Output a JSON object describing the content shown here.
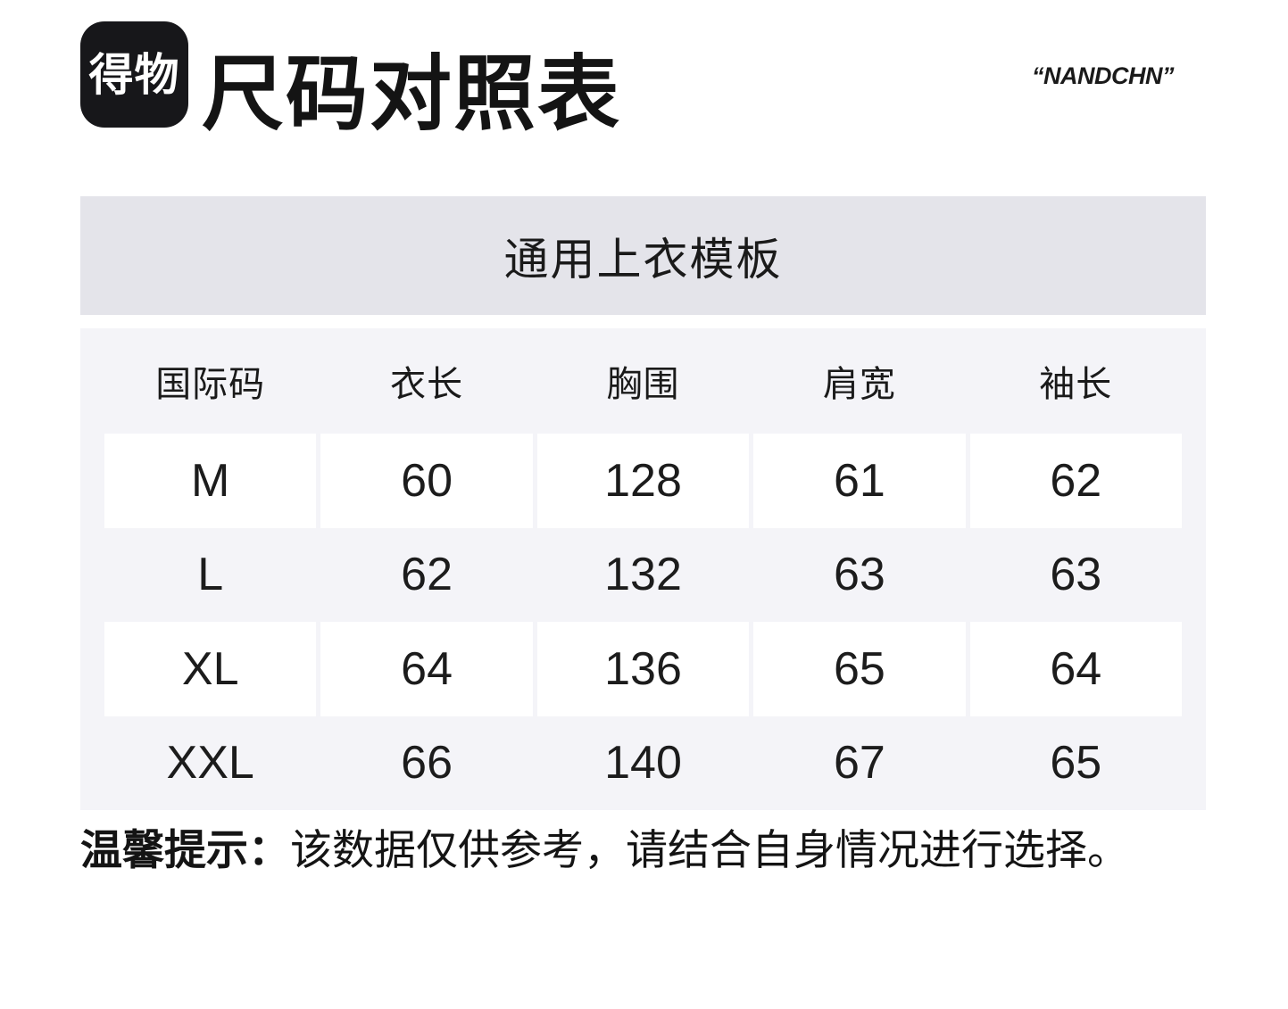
{
  "header": {
    "logo_text": "得物",
    "title": "尺码对照表",
    "brand_mark": "“NANDCHN”"
  },
  "section": {
    "title": "通用上衣模板"
  },
  "size_table": {
    "columns": [
      "国际码",
      "衣长",
      "胸围",
      "肩宽",
      "袖长"
    ],
    "rows": [
      [
        "M",
        "60",
        "128",
        "61",
        "62"
      ],
      [
        "L",
        "62",
        "132",
        "63",
        "63"
      ],
      [
        "XL",
        "64",
        "136",
        "65",
        "64"
      ],
      [
        "XXL",
        "66",
        "140",
        "67",
        "65"
      ]
    ]
  },
  "note": {
    "label": "温馨提示：",
    "text": "该数据仅供参考，请结合自身情况进行选择。"
  },
  "colors": {
    "logo_bg": "#17171a",
    "section_bar_bg": "#e4e4ea",
    "table_bg": "#f4f4f8",
    "row_stripe_bg": "#ffffff",
    "text": "#141414"
  }
}
